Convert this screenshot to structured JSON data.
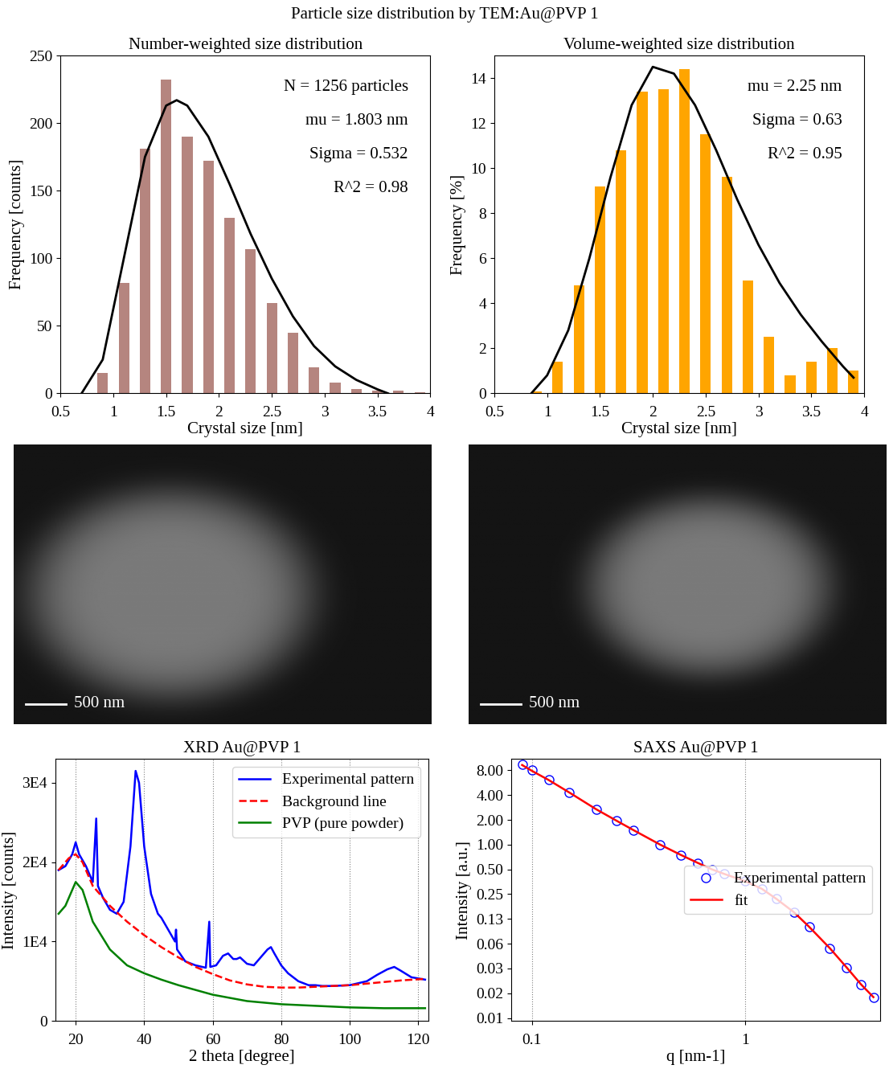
{
  "title": "Particle size distribution by TEM:Au@PVP 1",
  "chart_data": [
    {
      "type": "bar",
      "title": "Number-weighted size distribution",
      "x_label": "Crystal size [nm]",
      "y_label": "Frequency [counts]",
      "x": [
        0.9,
        1.1,
        1.3,
        1.5,
        1.7,
        1.9,
        2.1,
        2.3,
        2.5,
        2.7,
        2.9,
        3.1,
        3.3,
        3.5,
        3.7,
        3.9
      ],
      "values": [
        15,
        82,
        181,
        232,
        190,
        172,
        130,
        107,
        67,
        45,
        19,
        8,
        3,
        2,
        2,
        1
      ],
      "color": "#b5857f",
      "fit": {
        "color": "#000000",
        "x": [
          0.7,
          0.9,
          1.1,
          1.3,
          1.5,
          1.6,
          1.7,
          1.9,
          2.1,
          2.3,
          2.5,
          2.7,
          2.9,
          3.1,
          3.3,
          3.5,
          3.6
        ],
        "values": [
          0,
          25,
          100,
          175,
          213,
          217,
          213,
          190,
          155,
          118,
          85,
          57,
          35,
          20,
          10,
          3,
          0
        ]
      },
      "annotations": [
        "N = 1256 particles",
        "mu = 1.803 nm",
        "Sigma = 0.532",
        "R^2 = 0.98"
      ],
      "xlim": [
        0.5,
        4
      ],
      "xticks": [
        0.5,
        1,
        1.5,
        2,
        2.5,
        3,
        3.5,
        4
      ],
      "ylim": [
        0,
        250
      ],
      "yticks": [
        0,
        50,
        100,
        150,
        200,
        250
      ],
      "grid": false
    },
    {
      "type": "bar",
      "title": "Volume-weighted size distribution",
      "x_label": "Crystal size [nm]",
      "y_label": "Frequency [%]",
      "x": [
        0.9,
        1.1,
        1.3,
        1.5,
        1.7,
        1.9,
        2.1,
        2.3,
        2.5,
        2.7,
        2.9,
        3.1,
        3.3,
        3.5,
        3.7,
        3.9
      ],
      "values": [
        0.1,
        1.4,
        4.8,
        9.2,
        10.8,
        13.4,
        13.5,
        14.4,
        11.5,
        9.6,
        5.0,
        2.5,
        0.8,
        1.4,
        2.0,
        1.0
      ],
      "color": "#ffa500",
      "fit": {
        "color": "#000000",
        "x": [
          0.85,
          1.0,
          1.2,
          1.4,
          1.6,
          1.8,
          2.0,
          2.2,
          2.4,
          2.6,
          2.8,
          3.0,
          3.2,
          3.4,
          3.6,
          3.8,
          3.9
        ],
        "values": [
          0,
          0.8,
          2.8,
          6.0,
          9.6,
          12.8,
          14.5,
          14.2,
          12.8,
          10.8,
          8.6,
          6.6,
          4.9,
          3.5,
          2.3,
          1.2,
          0.7
        ]
      },
      "annotations": [
        "mu = 2.25 nm",
        "Sigma = 0.63",
        "R^2 = 0.95"
      ],
      "xlim": [
        0.5,
        4
      ],
      "xticks": [
        0.5,
        1,
        1.5,
        2,
        2.5,
        3,
        3.5,
        4
      ],
      "ylim": [
        0,
        15
      ],
      "yticks": [
        0,
        2,
        4,
        6,
        8,
        10,
        12,
        14
      ],
      "grid": false
    },
    {
      "type": "line",
      "title": "XRD Au@PVP 1",
      "x_label": "2 theta [degree]",
      "y_label": "Intensity [counts]",
      "series": [
        {
          "name": "Experimental pattern",
          "color": "#0000ff",
          "line_style": "solid",
          "x": [
            15,
            17,
            19,
            20,
            21,
            23,
            25,
            26,
            26.5,
            28,
            30,
            32,
            34,
            36,
            37.5,
            38.5,
            40,
            42,
            44,
            45,
            47,
            49,
            49.3,
            49.6,
            52,
            55,
            58,
            59,
            59.3,
            61,
            63,
            64.5,
            66,
            67,
            68,
            70,
            72,
            74,
            76,
            77,
            78,
            80,
            82,
            85,
            88,
            90,
            92,
            95,
            100,
            105,
            108,
            111,
            113,
            115,
            118,
            122
          ],
          "values": [
            19000,
            19500,
            21000,
            22500,
            21000,
            19500,
            17500,
            25500,
            17000,
            15500,
            14000,
            13500,
            15000,
            22000,
            31500,
            30000,
            22000,
            16000,
            13500,
            13000,
            11500,
            10000,
            11500,
            9000,
            7500,
            7000,
            6700,
            12500,
            6800,
            7000,
            8200,
            8500,
            7800,
            7800,
            8000,
            7200,
            7000,
            8000,
            9000,
            9300,
            8500,
            7000,
            6000,
            5000,
            4500,
            4500,
            4400,
            4400,
            4500,
            5000,
            5800,
            6500,
            6800,
            6300,
            5500,
            5200
          ]
        },
        {
          "name": "Background line",
          "color": "#ff0000",
          "line_style": "dashed",
          "x": [
            15,
            18,
            20,
            22,
            25,
            30,
            35,
            40,
            45,
            50,
            55,
            60,
            65,
            70,
            75,
            80,
            85,
            90,
            95,
            100,
            105,
            110,
            115,
            122
          ],
          "values": [
            19000,
            20500,
            21000,
            20000,
            17000,
            14500,
            12500,
            10800,
            9300,
            8000,
            6800,
            5900,
            5100,
            4600,
            4300,
            4200,
            4200,
            4300,
            4400,
            4500,
            4700,
            4900,
            5100,
            5300
          ]
        },
        {
          "name": "PVP (pure powder)",
          "color": "#008000",
          "line_style": "solid",
          "x": [
            15,
            17,
            19,
            20,
            22,
            25,
            30,
            35,
            40,
            45,
            50,
            60,
            70,
            80,
            90,
            100,
            110,
            122
          ],
          "values": [
            13500,
            14500,
            16500,
            17500,
            16500,
            12500,
            9000,
            7000,
            6000,
            5200,
            4500,
            3300,
            2500,
            2100,
            1900,
            1700,
            1600,
            1600
          ]
        }
      ],
      "xlim": [
        14,
        123
      ],
      "xticks": [
        20,
        40,
        60,
        80,
        100,
        120
      ],
      "ylim": [
        0,
        33000
      ],
      "yticks": [
        0,
        {
          "value": 10000,
          "label": "1E4"
        },
        {
          "value": 20000,
          "label": "2E4"
        },
        {
          "value": 30000,
          "label": "3E4"
        }
      ],
      "grid": true,
      "legend": "upper right"
    },
    {
      "type": "line",
      "title": "SAXS Au@PVP 1",
      "x_label": "q [nm-1]",
      "y_label": "Intensity [a.u.]",
      "log": true,
      "series": [
        {
          "name": "Experimental pattern",
          "type": "scatter",
          "marker": "circle",
          "color": "#0000ff",
          "x": [
            0.09,
            0.1,
            0.12,
            0.15,
            0.2,
            0.25,
            0.3,
            0.4,
            0.5,
            0.6,
            0.7,
            0.8,
            1.0,
            1.2,
            1.4,
            1.7,
            2.0,
            2.5,
            3.0,
            3.5,
            4.0
          ],
          "values": [
            9.5,
            8.0,
            6.2,
            4.3,
            2.7,
            1.95,
            1.5,
            1.0,
            0.75,
            0.6,
            0.5,
            0.44,
            0.36,
            0.29,
            0.22,
            0.15,
            0.1,
            0.055,
            0.032,
            0.02,
            0.014
          ]
        },
        {
          "name": "fit",
          "type": "line",
          "line_style": "solid",
          "color": "#ff0000",
          "x": [
            0.09,
            0.1,
            0.12,
            0.15,
            0.2,
            0.25,
            0.3,
            0.4,
            0.5,
            0.6,
            0.7,
            0.8,
            1.0,
            1.2,
            1.4,
            1.7,
            2.0,
            2.5,
            3.0,
            3.5,
            4.0
          ],
          "values": [
            9.3,
            7.9,
            6.1,
            4.3,
            2.7,
            1.95,
            1.5,
            1.0,
            0.75,
            0.6,
            0.5,
            0.44,
            0.36,
            0.29,
            0.22,
            0.15,
            0.1,
            0.055,
            0.032,
            0.02,
            0.014
          ]
        }
      ],
      "xlim": [
        0.08,
        4.3
      ],
      "xticks": [
        0.1,
        1
      ],
      "ylim": [
        0.0072,
        11
      ],
      "yticks": [
        {
          "value": 8,
          "label": "8.00"
        },
        {
          "value": 4,
          "label": "4.00"
        },
        {
          "value": 2,
          "label": "2.00"
        },
        {
          "value": 1,
          "label": "1.00"
        },
        {
          "value": 0.5,
          "label": "0.50"
        },
        {
          "value": 0.25,
          "label": "0.25"
        },
        {
          "value": 0.125,
          "label": "0.13"
        },
        {
          "value": 0.0625,
          "label": "0.06"
        },
        {
          "value": 0.03125,
          "label": "0.03"
        },
        {
          "value": 0.015625,
          "label": "0.02"
        },
        {
          "value": 0.0078125,
          "label": "0.01"
        }
      ],
      "grid": true,
      "legend": "center right"
    }
  ],
  "images": [
    {
      "scale_bar": "500 nm"
    },
    {
      "scale_bar": "500 nm"
    }
  ]
}
